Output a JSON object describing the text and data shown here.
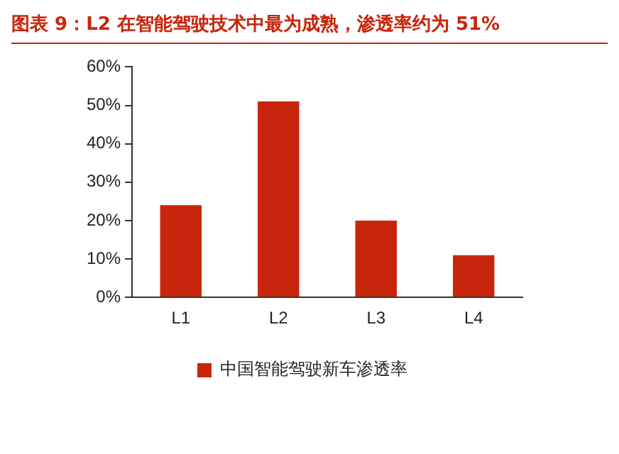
{
  "chart_data": {
    "type": "bar",
    "title": "图表 9：L2 在智能驾驶技术中最为成熟，渗透率约为 51%",
    "categories": [
      "L1",
      "L2",
      "L3",
      "L4"
    ],
    "series": [
      {
        "name": "中国智能驾驶新车渗透率",
        "color": "#c8260c",
        "values": [
          24,
          51,
          20,
          11
        ]
      }
    ],
    "ylim": [
      0,
      60
    ],
    "yticks": [
      {
        "value": 0,
        "label": "0%"
      },
      {
        "value": 10,
        "label": "10%"
      },
      {
        "value": 20,
        "label": "20%"
      },
      {
        "value": 30,
        "label": "30%"
      },
      {
        "value": 40,
        "label": "40%"
      },
      {
        "value": 50,
        "label": "50%"
      },
      {
        "value": 60,
        "label": "60%"
      }
    ],
    "grid": false,
    "legend": "bottom"
  }
}
